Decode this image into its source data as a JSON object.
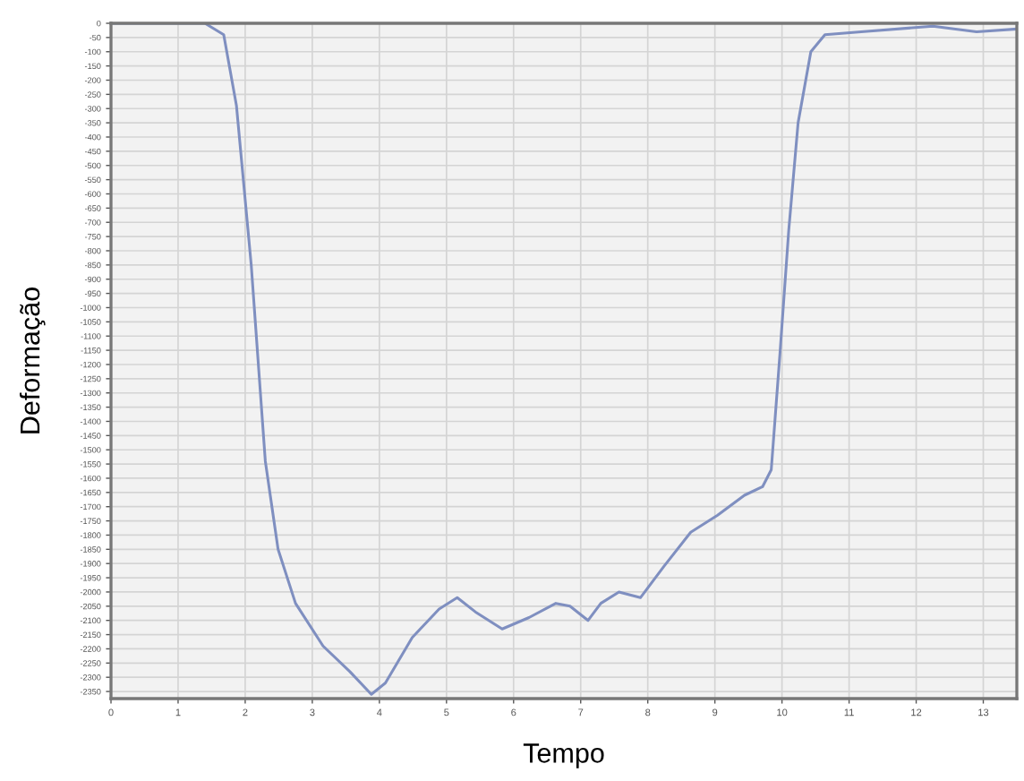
{
  "chart_data": {
    "type": "line",
    "xlabel": "Tempo",
    "ylabel": "Deformação",
    "xlim": [
      0,
      13.5
    ],
    "ylim": [
      -2375,
      0
    ],
    "xticks": [
      0,
      1,
      2,
      3,
      4,
      5,
      6,
      7,
      8,
      9,
      10,
      11,
      12,
      13
    ],
    "yticks": [
      0,
      -50,
      -100,
      -150,
      -200,
      -250,
      -300,
      -350,
      -400,
      -450,
      -500,
      -550,
      -600,
      -650,
      -700,
      -750,
      -800,
      -850,
      -900,
      -950,
      -1000,
      -1050,
      -1100,
      -1150,
      -1200,
      -1250,
      -1300,
      -1350,
      -1400,
      -1450,
      -1500,
      -1550,
      -1600,
      -1650,
      -1700,
      -1750,
      -1800,
      -1850,
      -1900,
      -1950,
      -2000,
      -2050,
      -2100,
      -2150,
      -2200,
      -2250,
      -2300,
      -2350
    ],
    "grid": true,
    "marker": "none",
    "line_style": "solid",
    "series": [
      {
        "color": "#7f8fc0",
        "x": [
          0,
          1.4,
          1.68,
          1.87,
          2.09,
          2.3,
          2.49,
          2.75,
          3.16,
          3.56,
          3.88,
          4.09,
          4.49,
          4.89,
          5.16,
          5.43,
          5.83,
          6.23,
          6.63,
          6.84,
          7.11,
          7.3,
          7.57,
          7.89,
          8.24,
          8.64,
          9.04,
          9.44,
          9.71,
          9.84,
          9.97,
          10.1,
          10.24,
          10.43,
          10.64,
          11.18,
          12.25,
          12.9,
          13.5
        ],
        "values": [
          0,
          0,
          -40,
          -290,
          -850,
          -1540,
          -1850,
          -2040,
          -2190,
          -2280,
          -2360,
          -2320,
          -2160,
          -2060,
          -2020,
          -2070,
          -2130,
          -2090,
          -2040,
          -2050,
          -2100,
          -2040,
          -2000,
          -2020,
          -1910,
          -1790,
          -1730,
          -1660,
          -1630,
          -1570,
          -1160,
          -730,
          -350,
          -100,
          -40,
          -30,
          -10,
          -30,
          -20
        ]
      }
    ]
  }
}
